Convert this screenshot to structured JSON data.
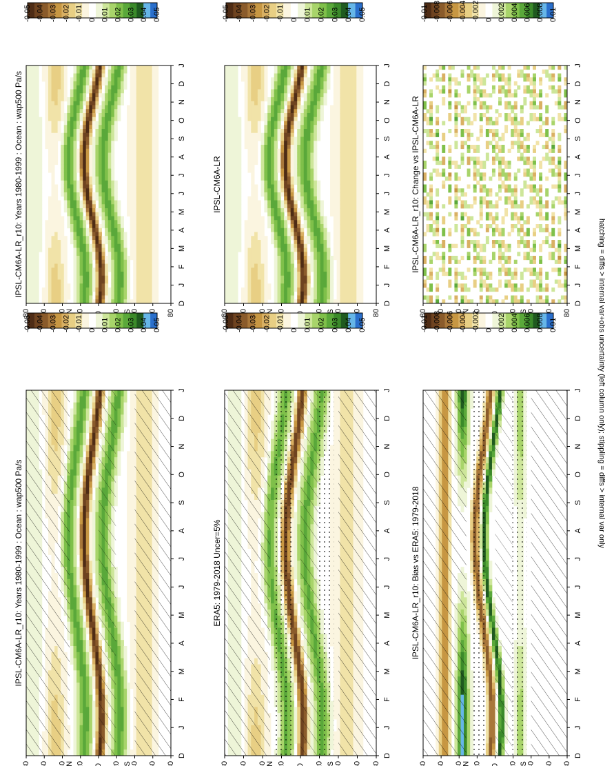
{
  "footer": "hatching = diffs > internal var+obs uncertainty (left column only); stippling = diffs > internal var only",
  "month_ticks": [
    "D",
    "J",
    "F",
    "M",
    "A",
    "M",
    "J",
    "J",
    "A",
    "S",
    "O",
    "N",
    "D",
    "J"
  ],
  "lat_ticks": [
    "80",
    "60",
    "40",
    "20",
    "0",
    "20",
    "40",
    "60",
    "80"
  ],
  "lat_unit_n": "°N",
  "lat_unit_s": "°S",
  "colorbars": {
    "wap": {
      "labels": [
        "0.05",
        "0.04",
        "0.03",
        "0.02",
        "0.01",
        "0",
        "-0.01",
        "-0.02",
        "-0.03",
        "-0.04",
        "-0.05"
      ],
      "colors": [
        "#2a6fcc",
        "#66b6e8",
        "#1f5a1f",
        "#3b8a2a",
        "#5aa83a",
        "#7fc04a",
        "#a8d46a",
        "#cde69a",
        "#eef5d8",
        "#ffffff",
        "#fbf5e0",
        "#f1e3a8",
        "#e8cf84",
        "#d9b063",
        "#c79743",
        "#a8773a",
        "#8a5b2b",
        "#6e4320",
        "#4e2c15"
      ]
    },
    "diff": {
      "labels": [
        "0.01",
        "0.008",
        "0.006",
        "0.004",
        "0.002",
        "0",
        "-0.002",
        "-0.004",
        "-0.006",
        "-0.008",
        "-0.01"
      ],
      "colors": [
        "#2a6fcc",
        "#66b6e8",
        "#1f5a1f",
        "#3b8a2a",
        "#5aa83a",
        "#7fc04a",
        "#a8d46a",
        "#cde69a",
        "#eef5d8",
        "#ffffff",
        "#fbf5e0",
        "#f1e3a8",
        "#e8cf84",
        "#d9b063",
        "#c79743",
        "#a8773a",
        "#8a5b2b",
        "#6e4320",
        "#4e2c15"
      ]
    }
  },
  "panels": [
    {
      "id": "p-tl",
      "title": "IPSL-CM6A-LR_r10: Years 1980-1999 : Ocean : wap500 Pa/s",
      "cbar": "wap",
      "kind": "model",
      "hatch": true,
      "stipple": true
    },
    {
      "id": "p-tr",
      "title": "IPSL-CM6A-LR_r10: Years 1980-1999 : Ocean : wap500 Pa/s",
      "cbar": "wap",
      "kind": "model",
      "hatch": false,
      "stipple": true
    },
    {
      "id": "p-ml",
      "title": "ERA5: 1979-2018 Uncer=5%",
      "cbar": "wap",
      "kind": "obs",
      "hatch": true,
      "stipple": true
    },
    {
      "id": "p-mr",
      "title": "IPSL-CM6A-LR",
      "cbar": "wap",
      "kind": "model",
      "hatch": false,
      "stipple": true
    },
    {
      "id": "p-bl",
      "title": "IPSL-CM6A-LR_r10: Bias vs ERA5: 1979-2018",
      "cbar": "diff",
      "kind": "bias",
      "hatch": true,
      "stipple": true
    },
    {
      "id": "p-br",
      "title": "IPSL-CM6A-LR_r10: Change vs IPSL-CM6A-LR",
      "cbar": "diff",
      "kind": "noise",
      "hatch": false,
      "stipple": true
    }
  ],
  "chart_data": {
    "type": "heatmap",
    "description_axes": {
      "x_axis_months": [
        "D",
        "J",
        "F",
        "M",
        "A",
        "M",
        "J",
        "J",
        "A",
        "S",
        "O",
        "N",
        "D",
        "J"
      ],
      "y_axis_latitude_range": [
        -90,
        90
      ]
    },
    "panel_titles": [
      "IPSL-CM6A-LR_r10: Years 1980-1999 : Ocean : wap500 Pa/s",
      "IPSL-CM6A-LR_r10: Years 1980-1999 : Ocean : wap500 Pa/s",
      "ERA5: 1979-2018 Uncer=5%",
      "IPSL-CM6A-LR",
      "IPSL-CM6A-LR_r10: Bias vs ERA5: 1979-2018",
      "IPSL-CM6A-LR_r10: Change vs IPSL-CM6A-LR"
    ],
    "colorbar_levels_wap500": [
      0.05,
      0.04,
      0.03,
      0.02,
      0.01,
      0,
      -0.01,
      -0.02,
      -0.03,
      -0.04,
      -0.05
    ],
    "colorbar_levels_diff": [
      0.01,
      0.008,
      0.006,
      0.004,
      0.002,
      0,
      -0.002,
      -0.004,
      -0.006,
      -0.008,
      -0.01
    ]
  }
}
